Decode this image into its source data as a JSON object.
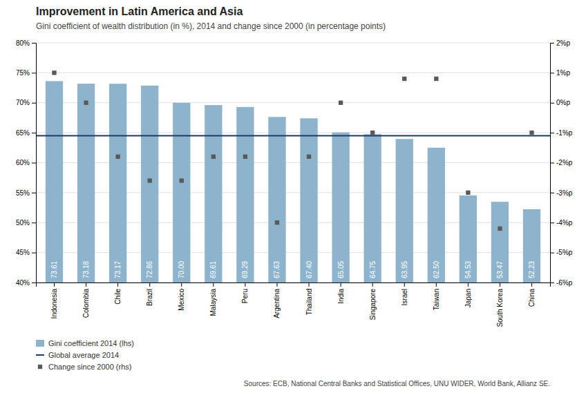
{
  "chart_data": {
    "type": "bar",
    "title": "Improvement in Latin America and Asia",
    "subtitle": "Gini coefficient of wealth distribution (in %), 2014 and change since 2000 (in percentage points)",
    "source": "Sources: ECB, National Central Banks and Statistical Offices, UNU WIDER, World Bank, Allianz SE.",
    "categories": [
      "Indonesia",
      "Colombia",
      "Chile",
      "Brazil",
      "Mexico",
      "Malaysia",
      "Peru",
      "Argentina",
      "Thailand",
      "India",
      "Singapore",
      "Israel",
      "Taiwan",
      "Japan",
      "South Korea",
      "China"
    ],
    "series": [
      {
        "name": "Gini coefficient 2014 (lhs)",
        "type": "bar",
        "color": "#8db4cc",
        "data_labels": true,
        "values": [
          73.61,
          73.18,
          73.17,
          72.86,
          70.0,
          69.61,
          69.29,
          67.63,
          67.4,
          65.05,
          64.75,
          63.95,
          62.5,
          54.53,
          53.47,
          52.23
        ],
        "value_labels": [
          "73.61",
          "73.18",
          "73.17",
          "72.86",
          "70.00",
          "69.61",
          "69.29",
          "67.63",
          "67.40",
          "65.05",
          "64.75",
          "63.95",
          "62.50",
          "54.53",
          "53.47",
          "52.23"
        ]
      },
      {
        "name": "Change since 2000 (rhs)",
        "type": "scatter",
        "axis": "y2",
        "color": "#595959",
        "marker": "square",
        "values": [
          1.0,
          0.0,
          -1.8,
          -2.6,
          -2.6,
          -1.8,
          -1.8,
          -4.0,
          -1.8,
          0.0,
          -1.0,
          0.8,
          0.8,
          -3.0,
          -4.2,
          -1.0
        ]
      }
    ],
    "reference_lines": [
      {
        "name": "Global average 2014",
        "value": 64.5,
        "color": "#1f3864"
      }
    ],
    "ylim": [
      40,
      80
    ],
    "yticks": [
      {
        "value": 40,
        "label": "40%"
      },
      {
        "value": 45,
        "label": "45%"
      },
      {
        "value": 50,
        "label": "50%"
      },
      {
        "value": 55,
        "label": "55%"
      },
      {
        "value": 60,
        "label": "60%"
      },
      {
        "value": 65,
        "label": "65%"
      },
      {
        "value": 70,
        "label": "70%"
      },
      {
        "value": 75,
        "label": "75%"
      },
      {
        "value": 80,
        "label": "80%"
      }
    ],
    "y2lim": [
      -6,
      2
    ],
    "y2ticks": [
      {
        "value": -6,
        "label": "-6%p"
      },
      {
        "value": -5,
        "label": "-5%p"
      },
      {
        "value": -4,
        "label": "-4%p"
      },
      {
        "value": -3,
        "label": "-3%p"
      },
      {
        "value": -2,
        "label": "-2%p"
      },
      {
        "value": -1,
        "label": "-1%p"
      },
      {
        "value": 0,
        "label": "0%p"
      },
      {
        "value": 1,
        "label": "1%p"
      },
      {
        "value": 2,
        "label": "2%p"
      }
    ],
    "grid": true,
    "legend": "lower left"
  }
}
